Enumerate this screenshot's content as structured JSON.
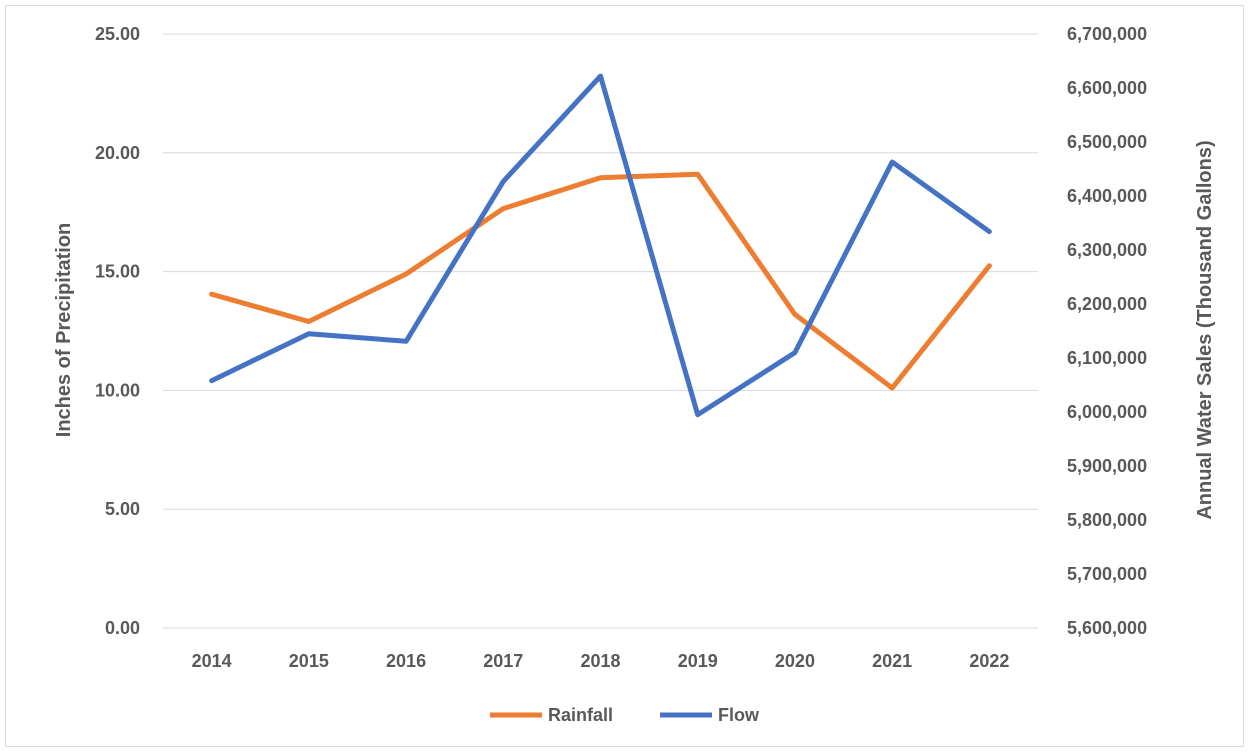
{
  "chart_data": {
    "type": "line",
    "categories": [
      "2014",
      "2015",
      "2016",
      "2017",
      "2018",
      "2019",
      "2020",
      "2021",
      "2022"
    ],
    "series": [
      {
        "name": "Rainfall",
        "axis": "left",
        "color": "#ED7D31",
        "values": [
          14.05,
          12.9,
          14.9,
          17.65,
          18.95,
          19.1,
          13.2,
          10.1,
          15.25
        ]
      },
      {
        "name": "Flow",
        "axis": "right",
        "color": "#4472C4",
        "values": [
          6058000,
          6145000,
          6131000,
          6427000,
          6622000,
          5995000,
          6110000,
          6463000,
          6334000
        ]
      }
    ],
    "ylabel": "Inches of Precipitation",
    "y2label": "Annual Water Sales (Thousand Gallons)",
    "ylim": [
      0,
      25
    ],
    "y2lim": [
      5600000,
      6700000
    ],
    "yticks": [
      "0.00",
      "5.00",
      "10.00",
      "15.00",
      "20.00",
      "25.00"
    ],
    "y2ticks": [
      "5,600,000",
      "5,700,000",
      "5,800,000",
      "5,900,000",
      "6,000,000",
      "6,100,000",
      "6,200,000",
      "6,300,000",
      "6,400,000",
      "6,500,000",
      "6,600,000",
      "6,700,000"
    ],
    "grid": true,
    "legend_position": "bottom"
  }
}
